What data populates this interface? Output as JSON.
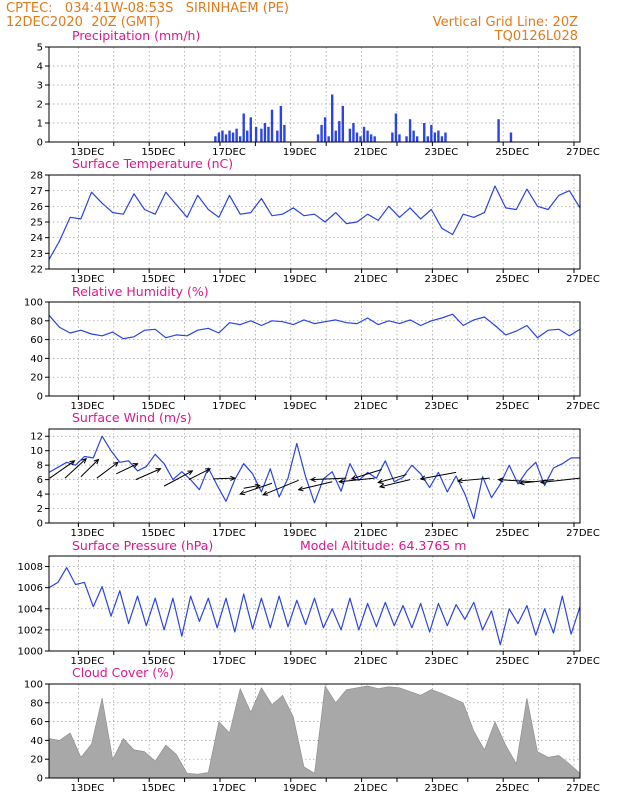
{
  "header": {
    "left_line1": "CPTEC:   034:41W-08:53S   SIRINHAEM (PE)",
    "left_line2": "12DEC2020  20Z (GMT)",
    "right_line1": "Vertical Grid Line: 20Z",
    "right_line2": "TQ0126L028"
  },
  "colors": {
    "line": "#2b44e6",
    "bar": "#2b44e6",
    "cloud": "#a8a8a8",
    "header": "#e37a1c",
    "title": "#e0168e"
  },
  "x_tick_labels": [
    "13DEC",
    "15DEC",
    "17DEC",
    "19DEC",
    "21DEC",
    "23DEC",
    "25DEC",
    "27DEC"
  ],
  "chart_data": [
    {
      "id": "precip",
      "type": "bar",
      "title": "Precipitation (mm/h)",
      "ylim": [
        0,
        5
      ],
      "yticks": [
        "0",
        "1",
        "2",
        "3",
        "4",
        "5"
      ],
      "x": [
        16.7,
        16.8,
        16.9,
        17.0,
        17.1,
        17.2,
        17.3,
        17.4,
        17.5,
        17.6,
        17.7,
        17.85,
        18.0,
        18.1,
        18.2,
        18.3,
        18.45,
        18.55,
        18.65,
        19.6,
        19.7,
        19.8,
        19.9,
        20.0,
        20.1,
        20.2,
        20.3,
        20.5,
        20.6,
        20.7,
        20.8,
        20.9,
        21.0,
        21.1,
        21.2,
        21.7,
        21.8,
        21.9,
        22.1,
        22.2,
        22.3,
        22.4,
        22.6,
        22.7,
        22.8,
        22.9,
        23.0,
        23.1,
        23.2,
        24.7,
        25.05
      ],
      "values": [
        0.3,
        0.5,
        0.6,
        0.4,
        0.6,
        0.5,
        0.7,
        0.3,
        1.5,
        0.6,
        1.3,
        0.8,
        0.7,
        1.0,
        0.8,
        1.7,
        0.6,
        1.9,
        0.9,
        0.4,
        0.9,
        1.3,
        0.3,
        2.5,
        0.6,
        1.1,
        1.9,
        0.7,
        1.0,
        0.5,
        0.3,
        0.8,
        0.6,
        0.4,
        0.3,
        0.5,
        1.5,
        0.4,
        0.3,
        1.2,
        0.6,
        0.3,
        1.0,
        0.3,
        0.9,
        0.5,
        0.6,
        0.3,
        0.5,
        1.2,
        0.5
      ]
    },
    {
      "id": "temp",
      "type": "line",
      "title": "Surface Temperature (nC)",
      "ylim": [
        22,
        28
      ],
      "yticks": [
        "22",
        "23",
        "24",
        "25",
        "26",
        "27",
        "28"
      ],
      "x": [
        12.0,
        12.3,
        12.6,
        12.9,
        13.2,
        13.5,
        13.8,
        14.1,
        14.4,
        14.7,
        15.0,
        15.3,
        15.6,
        15.9,
        16.2,
        16.5,
        16.8,
        17.1,
        17.4,
        17.7,
        18.0,
        18.3,
        18.6,
        18.9,
        19.2,
        19.5,
        19.8,
        20.1,
        20.4,
        20.7,
        21.0,
        21.3,
        21.6,
        21.9,
        22.2,
        22.5,
        22.8,
        23.1,
        23.4,
        23.7,
        24.0,
        24.3,
        24.6,
        24.9,
        25.2,
        25.5,
        25.8,
        26.1,
        26.4,
        26.7,
        27.0
      ],
      "values": [
        22.6,
        23.8,
        25.3,
        25.2,
        26.9,
        26.2,
        25.6,
        25.5,
        26.8,
        25.8,
        25.5,
        26.9,
        26.1,
        25.3,
        26.7,
        25.8,
        25.3,
        26.7,
        25.5,
        25.6,
        26.5,
        25.4,
        25.5,
        25.9,
        25.4,
        25.5,
        25.0,
        25.6,
        24.9,
        25.0,
        25.5,
        25.1,
        26.0,
        25.3,
        25.9,
        25.2,
        25.8,
        24.6,
        24.2,
        25.5,
        25.3,
        25.6,
        27.3,
        25.9,
        25.8,
        27.1,
        26.0,
        25.8,
        26.7,
        27.0,
        25.9
      ]
    },
    {
      "id": "rh",
      "type": "line",
      "title": "Relative Humidity (%)",
      "ylim": [
        0,
        100
      ],
      "yticks": [
        "0",
        "20",
        "40",
        "60",
        "80",
        "100"
      ],
      "x": [
        12.0,
        12.3,
        12.6,
        12.9,
        13.2,
        13.5,
        13.8,
        14.1,
        14.4,
        14.7,
        15.0,
        15.3,
        15.6,
        15.9,
        16.2,
        16.5,
        16.8,
        17.1,
        17.4,
        17.7,
        18.0,
        18.3,
        18.6,
        18.9,
        19.2,
        19.5,
        19.8,
        20.1,
        20.4,
        20.7,
        21.0,
        21.3,
        21.6,
        21.9,
        22.2,
        22.5,
        22.8,
        23.1,
        23.4,
        23.7,
        24.0,
        24.3,
        24.6,
        24.9,
        25.2,
        25.5,
        25.8,
        26.1,
        26.4,
        26.7,
        27.0
      ],
      "values": [
        86,
        73,
        67,
        70,
        66,
        64,
        68,
        61,
        63,
        70,
        71,
        62,
        65,
        64,
        70,
        72,
        67,
        78,
        76,
        80,
        75,
        80,
        79,
        76,
        81,
        77,
        79,
        81,
        78,
        77,
        83,
        76,
        80,
        77,
        81,
        75,
        80,
        83,
        87,
        75,
        81,
        84,
        75,
        65,
        69,
        75,
        62,
        70,
        71,
        64,
        71
      ]
    },
    {
      "id": "wind",
      "type": "line",
      "title": "Surface Wind (m/s)",
      "ylim": [
        0,
        13
      ],
      "yticks": [
        "0",
        "2",
        "4",
        "6",
        "8",
        "10",
        "12"
      ],
      "x": [
        12.0,
        12.25,
        12.5,
        12.75,
        13.0,
        13.25,
        13.5,
        13.75,
        14.0,
        14.25,
        14.5,
        14.75,
        15.0,
        15.25,
        15.5,
        15.75,
        16.0,
        16.25,
        16.5,
        16.75,
        17.0,
        17.25,
        17.5,
        17.75,
        18.0,
        18.25,
        18.5,
        18.75,
        19.0,
        19.25,
        19.5,
        19.75,
        20.0,
        20.25,
        20.5,
        20.75,
        21.0,
        21.25,
        21.5,
        21.75,
        22.0,
        22.25,
        22.5,
        22.75,
        23.0,
        23.25,
        23.5,
        23.75,
        24.0,
        24.25,
        24.5,
        24.75,
        25.0,
        25.25,
        25.5,
        25.75,
        26.0,
        26.25,
        26.5,
        26.75,
        27.0
      ],
      "values": [
        7.0,
        7.7,
        8.4,
        8.0,
        9.2,
        9.0,
        12.0,
        10.0,
        8.4,
        8.6,
        7.2,
        7.8,
        9.5,
        8.2,
        6.0,
        7.1,
        6.0,
        4.6,
        7.6,
        5.2,
        3.0,
        6.0,
        8.2,
        6.8,
        4.3,
        7.5,
        3.6,
        6.2,
        11.0,
        6.4,
        2.8,
        6.1,
        7.1,
        4.4,
        8.2,
        5.9,
        7.0,
        6.2,
        8.6,
        5.7,
        6.3,
        8.0,
        6.8,
        4.9,
        7.0,
        4.3,
        6.5,
        4.0,
        0.6,
        6.4,
        3.5,
        5.4,
        8.0,
        5.4,
        7.2,
        8.4,
        5.2,
        7.6,
        8.2,
        9.0,
        9.0
      ]
    },
    {
      "id": "pressure",
      "type": "line",
      "title": "Surface Pressure (hPa)",
      "annotation": "Model Altitude: 64.3765 m",
      "ylim": [
        1000,
        1009
      ],
      "yticks": [
        "1000",
        "1002",
        "1004",
        "1006",
        "1008"
      ],
      "x": [
        12.0,
        12.25,
        12.5,
        12.75,
        13.0,
        13.25,
        13.5,
        13.75,
        14.0,
        14.25,
        14.5,
        14.75,
        15.0,
        15.25,
        15.5,
        15.75,
        16.0,
        16.25,
        16.5,
        16.75,
        17.0,
        17.25,
        17.5,
        17.75,
        18.0,
        18.25,
        18.5,
        18.75,
        19.0,
        19.25,
        19.5,
        19.75,
        20.0,
        20.25,
        20.5,
        20.75,
        21.0,
        21.25,
        21.5,
        21.75,
        22.0,
        22.25,
        22.5,
        22.75,
        23.0,
        23.25,
        23.5,
        23.75,
        24.0,
        24.25,
        24.5,
        24.75,
        25.0,
        25.25,
        25.5,
        25.75,
        26.0,
        26.25,
        26.5,
        26.75,
        27.0
      ],
      "values": [
        1006.0,
        1006.5,
        1007.9,
        1006.3,
        1006.5,
        1004.2,
        1006.1,
        1003.3,
        1005.7,
        1002.6,
        1005.2,
        1002.4,
        1005.0,
        1002.0,
        1005.0,
        1001.4,
        1005.2,
        1002.8,
        1005.0,
        1002.2,
        1005.0,
        1001.8,
        1005.4,
        1002.1,
        1005.0,
        1002.2,
        1005.2,
        1002.3,
        1004.8,
        1002.5,
        1005.0,
        1002.2,
        1004.0,
        1002.0,
        1005.0,
        1002.0,
        1004.5,
        1002.3,
        1004.6,
        1002.4,
        1004.3,
        1002.2,
        1004.5,
        1001.8,
        1004.5,
        1002.4,
        1004.4,
        1003.0,
        1004.6,
        1002.0,
        1003.8,
        1000.6,
        1004.0,
        1002.6,
        1004.3,
        1001.5,
        1004.0,
        1001.7,
        1005.2,
        1001.6,
        1004.2
      ]
    },
    {
      "id": "cloud",
      "type": "area",
      "title": "Cloud Cover (%)",
      "ylim": [
        0,
        100
      ],
      "yticks": [
        "0",
        "20",
        "40",
        "60",
        "80",
        "100"
      ],
      "x": [
        12.0,
        12.3,
        12.6,
        12.9,
        13.2,
        13.5,
        13.8,
        14.1,
        14.4,
        14.7,
        15.0,
        15.3,
        15.6,
        15.9,
        16.2,
        16.5,
        16.8,
        17.1,
        17.4,
        17.7,
        18.0,
        18.3,
        18.6,
        18.9,
        19.2,
        19.5,
        19.8,
        20.1,
        20.4,
        20.7,
        21.0,
        21.3,
        21.6,
        21.9,
        22.2,
        22.5,
        22.8,
        23.1,
        23.4,
        23.7,
        24.0,
        24.3,
        24.6,
        24.9,
        25.2,
        25.5,
        25.8,
        26.1,
        26.4,
        26.7,
        27.0
      ],
      "values": [
        42,
        40,
        48,
        22,
        36,
        85,
        20,
        42,
        30,
        28,
        18,
        35,
        25,
        5,
        4,
        6,
        60,
        48,
        95,
        70,
        96,
        78,
        88,
        65,
        12,
        5,
        98,
        80,
        94,
        96,
        98,
        95,
        97,
        96,
        92,
        88,
        94,
        90,
        85,
        80,
        50,
        30,
        60,
        35,
        15,
        85,
        28,
        22,
        24,
        15,
        5
      ]
    }
  ]
}
